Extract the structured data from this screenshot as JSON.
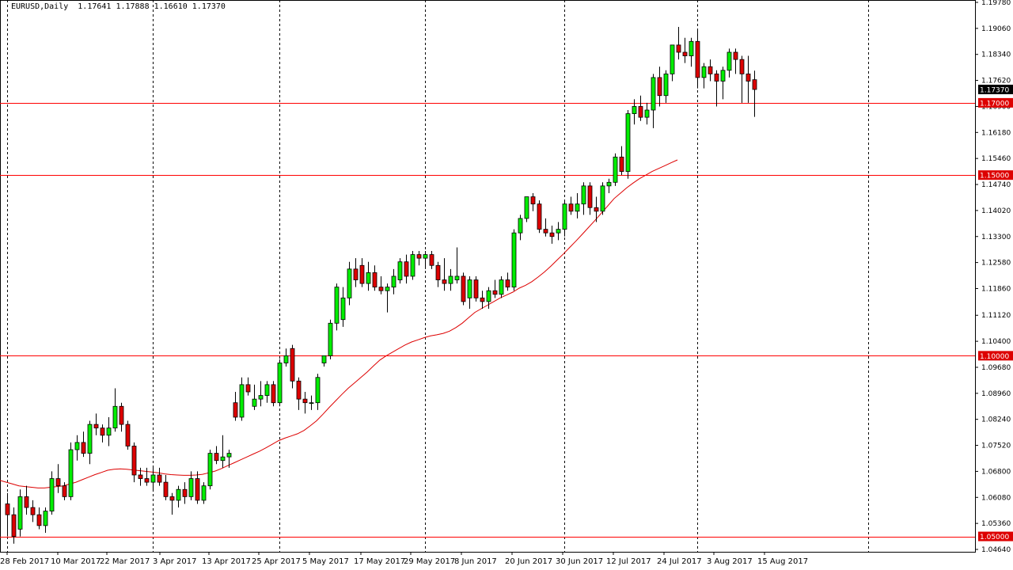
{
  "colors": {
    "bull": "#00ee00",
    "bear": "#dd0000",
    "wick": "#000000",
    "ma": "#dd0000",
    "level": "#ff0000",
    "price_tag": "#000000",
    "level_tag": "#dd0000"
  },
  "chart_data": {
    "type": "candlestick",
    "title": "EURUSD,Daily  1.17641 1.17888 1.16610 1.17370",
    "ylim": [
      1.0464,
      1.1978
    ],
    "y_ticks": [
      "1.19780",
      "1.19060",
      "1.18340",
      "1.17620",
      "1.16900",
      "1.16180",
      "1.15460",
      "1.14740",
      "1.14020",
      "1.13300",
      "1.12580",
      "1.11860",
      "1.11120",
      "1.10400",
      "1.09680",
      "1.08960",
      "1.08240",
      "1.07520",
      "1.06800",
      "1.06080",
      "1.05360",
      "1.04640"
    ],
    "x_labels": [
      "28 Feb 2017",
      "10 Mar 2017",
      "22 Mar 2017",
      "3 Apr 2017",
      "13 Apr 2017",
      "25 Apr 2017",
      "5 May 2017",
      "17 May 2017",
      "29 May 2017",
      "8 Jun 2017",
      "20 Jun 2017",
      "30 Jun 2017",
      "12 Jul 2017",
      "24 Jul 2017",
      "3 Aug 2017",
      "15 Aug 2017"
    ],
    "current_price": "1.17370",
    "horizontal_levels": [
      "1.17000",
      "1.15000",
      "1.10000",
      "1.05000"
    ],
    "grid": "vertical dashed",
    "ohlc": [
      [
        1.059,
        1.062,
        1.05,
        1.056
      ],
      [
        1.056,
        1.058,
        1.048,
        1.05
      ],
      [
        1.052,
        1.063,
        1.05,
        1.061
      ],
      [
        1.061,
        1.064,
        1.056,
        1.058
      ],
      [
        1.058,
        1.06,
        1.054,
        1.056
      ],
      [
        1.056,
        1.058,
        1.052,
        1.053
      ],
      [
        1.053,
        1.058,
        1.051,
        1.057
      ],
      [
        1.057,
        1.068,
        1.056,
        1.066
      ],
      [
        1.066,
        1.07,
        1.062,
        1.064
      ],
      [
        1.064,
        1.065,
        1.06,
        1.061
      ],
      [
        1.061,
        1.076,
        1.06,
        1.074
      ],
      [
        1.074,
        1.078,
        1.071,
        1.076
      ],
      [
        1.076,
        1.079,
        1.072,
        1.073
      ],
      [
        1.073,
        1.082,
        1.07,
        1.081
      ],
      [
        1.081,
        1.084,
        1.078,
        1.08
      ],
      [
        1.08,
        1.081,
        1.076,
        1.078
      ],
      [
        1.078,
        1.083,
        1.075,
        1.08
      ],
      [
        1.08,
        1.091,
        1.079,
        1.086
      ],
      [
        1.086,
        1.087,
        1.079,
        1.081
      ],
      [
        1.081,
        1.082,
        1.074,
        1.075
      ],
      [
        1.075,
        1.076,
        1.065,
        1.067
      ],
      [
        1.067,
        1.069,
        1.064,
        1.066
      ],
      [
        1.066,
        1.069,
        1.064,
        1.065
      ],
      [
        1.065,
        1.069,
        1.063,
        1.067
      ],
      [
        1.067,
        1.069,
        1.064,
        1.065
      ],
      [
        1.065,
        1.067,
        1.06,
        1.061
      ],
      [
        1.061,
        1.062,
        1.056,
        1.06
      ],
      [
        1.06,
        1.064,
        1.058,
        1.063
      ],
      [
        1.063,
        1.065,
        1.059,
        1.061
      ],
      [
        1.061,
        1.068,
        1.06,
        1.066
      ],
      [
        1.066,
        1.068,
        1.059,
        1.06
      ],
      [
        1.06,
        1.065,
        1.059,
        1.064
      ],
      [
        1.064,
        1.074,
        1.063,
        1.073
      ],
      [
        1.073,
        1.075,
        1.07,
        1.071
      ],
      [
        1.071,
        1.078,
        1.069,
        1.072
      ],
      [
        1.072,
        1.074,
        1.069,
        1.073
      ],
      [
        1.087,
        1.09,
        1.082,
        1.083
      ],
      [
        1.083,
        1.094,
        1.082,
        1.092
      ],
      [
        1.092,
        1.094,
        1.089,
        1.09
      ],
      [
        1.086,
        1.092,
        1.085,
        1.088
      ],
      [
        1.088,
        1.093,
        1.086,
        1.089
      ],
      [
        1.089,
        1.093,
        1.087,
        1.092
      ],
      [
        1.092,
        1.093,
        1.086,
        1.087
      ],
      [
        1.087,
        1.099,
        1.086,
        1.098
      ],
      [
        1.098,
        1.102,
        1.097,
        1.1
      ],
      [
        1.102,
        1.103,
        1.091,
        1.093
      ],
      [
        1.093,
        1.094,
        1.085,
        1.088
      ],
      [
        1.088,
        1.09,
        1.084,
        1.087
      ],
      [
        1.087,
        1.089,
        1.085,
        1.087
      ],
      [
        1.087,
        1.095,
        1.085,
        1.094
      ],
      [
        1.098,
        1.1,
        1.097,
        1.1
      ],
      [
        1.1,
        1.11,
        1.099,
        1.109
      ],
      [
        1.109,
        1.12,
        1.107,
        1.119
      ],
      [
        1.11,
        1.119,
        1.108,
        1.116
      ],
      [
        1.116,
        1.126,
        1.114,
        1.124
      ],
      [
        1.124,
        1.127,
        1.119,
        1.121
      ],
      [
        1.125,
        1.127,
        1.119,
        1.12
      ],
      [
        1.12,
        1.126,
        1.118,
        1.123
      ],
      [
        1.123,
        1.125,
        1.118,
        1.119
      ],
      [
        1.119,
        1.122,
        1.117,
        1.118
      ],
      [
        1.118,
        1.12,
        1.112,
        1.119
      ],
      [
        1.119,
        1.124,
        1.117,
        1.122
      ],
      [
        1.121,
        1.127,
        1.12,
        1.126
      ],
      [
        1.126,
        1.128,
        1.12,
        1.122
      ],
      [
        1.122,
        1.129,
        1.121,
        1.128
      ],
      [
        1.128,
        1.129,
        1.125,
        1.127
      ],
      [
        1.127,
        1.129,
        1.124,
        1.128
      ],
      [
        1.128,
        1.129,
        1.124,
        1.125
      ],
      [
        1.125,
        1.126,
        1.119,
        1.121
      ],
      [
        1.121,
        1.127,
        1.118,
        1.12
      ],
      [
        1.12,
        1.124,
        1.118,
        1.122
      ],
      [
        1.121,
        1.13,
        1.12,
        1.122
      ],
      [
        1.122,
        1.123,
        1.114,
        1.115
      ],
      [
        1.116,
        1.122,
        1.113,
        1.121
      ],
      [
        1.121,
        1.122,
        1.115,
        1.116
      ],
      [
        1.116,
        1.118,
        1.113,
        1.115
      ],
      [
        1.115,
        1.119,
        1.113,
        1.118
      ],
      [
        1.118,
        1.121,
        1.116,
        1.117
      ],
      [
        1.117,
        1.122,
        1.116,
        1.121
      ],
      [
        1.121,
        1.123,
        1.118,
        1.119
      ],
      [
        1.119,
        1.135,
        1.118,
        1.134
      ],
      [
        1.134,
        1.139,
        1.132,
        1.138
      ],
      [
        1.138,
        1.144,
        1.137,
        1.144
      ],
      [
        1.144,
        1.145,
        1.14,
        1.142
      ],
      [
        1.142,
        1.143,
        1.134,
        1.135
      ],
      [
        1.135,
        1.138,
        1.133,
        1.134
      ],
      [
        1.134,
        1.136,
        1.131,
        1.133
      ],
      [
        1.134,
        1.137,
        1.132,
        1.135
      ],
      [
        1.135,
        1.143,
        1.133,
        1.142
      ],
      [
        1.142,
        1.144,
        1.139,
        1.14
      ],
      [
        1.14,
        1.145,
        1.138,
        1.142
      ],
      [
        1.142,
        1.148,
        1.139,
        1.147
      ],
      [
        1.147,
        1.148,
        1.139,
        1.141
      ],
      [
        1.141,
        1.144,
        1.137,
        1.14
      ],
      [
        1.14,
        1.148,
        1.139,
        1.147
      ],
      [
        1.147,
        1.149,
        1.145,
        1.148
      ],
      [
        1.148,
        1.156,
        1.147,
        1.155
      ],
      [
        1.155,
        1.158,
        1.15,
        1.151
      ],
      [
        1.151,
        1.168,
        1.149,
        1.167
      ],
      [
        1.167,
        1.171,
        1.164,
        1.169
      ],
      [
        1.169,
        1.172,
        1.165,
        1.166
      ],
      [
        1.166,
        1.17,
        1.164,
        1.168
      ],
      [
        1.168,
        1.178,
        1.163,
        1.177
      ],
      [
        1.177,
        1.18,
        1.169,
        1.172
      ],
      [
        1.172,
        1.179,
        1.17,
        1.178
      ],
      [
        1.178,
        1.186,
        1.176,
        1.186
      ],
      [
        1.186,
        1.191,
        1.182,
        1.184
      ],
      [
        1.184,
        1.188,
        1.181,
        1.183
      ],
      [
        1.183,
        1.188,
        1.18,
        1.187
      ],
      [
        1.187,
        1.19,
        1.174,
        1.177
      ],
      [
        1.177,
        1.181,
        1.174,
        1.18
      ],
      [
        1.18,
        1.182,
        1.176,
        1.178
      ],
      [
        1.178,
        1.179,
        1.169,
        1.176
      ],
      [
        1.176,
        1.18,
        1.171,
        1.179
      ],
      [
        1.179,
        1.185,
        1.177,
        1.184
      ],
      [
        1.184,
        1.185,
        1.178,
        1.182
      ],
      [
        1.182,
        1.183,
        1.17,
        1.178
      ],
      [
        1.178,
        1.183,
        1.17,
        1.176
      ],
      [
        1.1764,
        1.1789,
        1.1661,
        1.1737
      ]
    ],
    "ma_series": [
      1.0655,
      1.065,
      1.0645,
      1.064,
      1.0638,
      1.0636,
      1.0634,
      1.0634,
      1.0636,
      1.0638,
      1.064,
      1.0645,
      1.065,
      1.0657,
      1.0664,
      1.0671,
      1.0677,
      1.0683,
      1.0686,
      1.0687,
      1.0686,
      1.0684,
      1.0682,
      1.068,
      1.0678,
      1.0676,
      1.0673,
      1.0671,
      1.067,
      1.0669,
      1.0669,
      1.067,
      1.0672,
      1.0676,
      1.0681,
      1.0688,
      1.0696,
      1.0704,
      1.0712,
      1.072,
      1.0728,
      1.0736,
      1.0745,
      1.0755,
      1.0765,
      1.0772,
      1.0778,
      1.0784,
      1.0793,
      1.0806,
      1.082,
      1.0838,
      1.0857,
      1.0875,
      1.0893,
      1.091,
      1.0925,
      1.094,
      1.0955,
      1.0972,
      1.0988,
      1.1,
      1.101,
      1.102,
      1.103,
      1.1038,
      1.1044,
      1.105,
      1.1055,
      1.1058,
      1.1062,
      1.1068,
      1.1078,
      1.109,
      1.1105,
      1.112,
      1.113,
      1.114,
      1.115,
      1.116,
      1.1168,
      1.1176,
      1.1187,
      1.1195,
      1.1205,
      1.1218,
      1.1232,
      1.1248,
      1.1265,
      1.1282,
      1.13,
      1.1318,
      1.1337,
      1.1356,
      1.1375,
      1.1395,
      1.1415,
      1.1435,
      1.145,
      1.1465,
      1.1478,
      1.149,
      1.15,
      1.151,
      1.1518,
      1.1526,
      1.1534,
      1.1542
    ]
  }
}
